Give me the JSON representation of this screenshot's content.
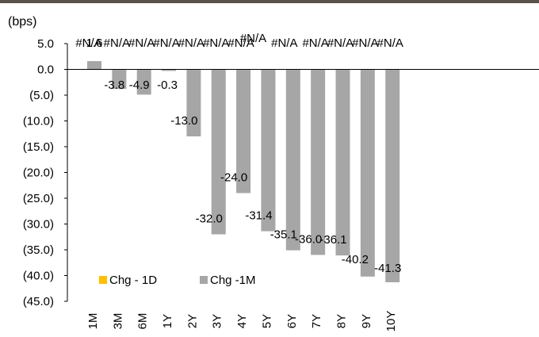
{
  "chart_data": {
    "type": "bar",
    "unit_label": "(bps)",
    "categories": [
      "1M",
      "3M",
      "6M",
      "1Y",
      "2Y",
      "3Y",
      "4Y",
      "5Y",
      "6Y",
      "7Y",
      "8Y",
      "9Y",
      "10Y"
    ],
    "ylim": [
      -45,
      5
    ],
    "yticks": [
      "5.0",
      "0.0",
      "(5.0)",
      "(10.0)",
      "(15.0)",
      "(20.0)",
      "(25.0)",
      "(30.0)",
      "(35.0)",
      "(40.0)",
      "(45.0)"
    ],
    "series": [
      {
        "name": "Chg - 1D",
        "color": "#ffc000",
        "values": [
          null,
          null,
          null,
          null,
          null,
          null,
          null,
          null,
          null,
          null,
          null,
          null,
          null
        ],
        "labels": [
          "#N/A",
          "#N/A",
          "#N/A",
          "#N/A",
          "#N/A",
          "#N/A",
          "#N/A",
          "#N/A",
          "#N/A",
          "#N/A",
          "#N/A",
          "#N/A",
          "#N/A"
        ]
      },
      {
        "name": "Chg -1M",
        "color": "#a6a6a6",
        "values": [
          1.6,
          -3.8,
          -4.9,
          -0.3,
          -13.0,
          -32.0,
          -24.0,
          -31.4,
          -35.1,
          -36.0,
          -36.1,
          -40.2,
          -41.3
        ],
        "labels": [
          "1.6",
          "-3.8",
          "-4.9",
          "-0.3",
          "-13.0",
          "-32.0",
          "-24.0",
          "-31.4",
          "-35.1",
          "-36.0",
          "-36.1",
          "-40.2",
          "-41.3"
        ]
      }
    ],
    "legend_position": "bottom-left",
    "grid": false
  }
}
